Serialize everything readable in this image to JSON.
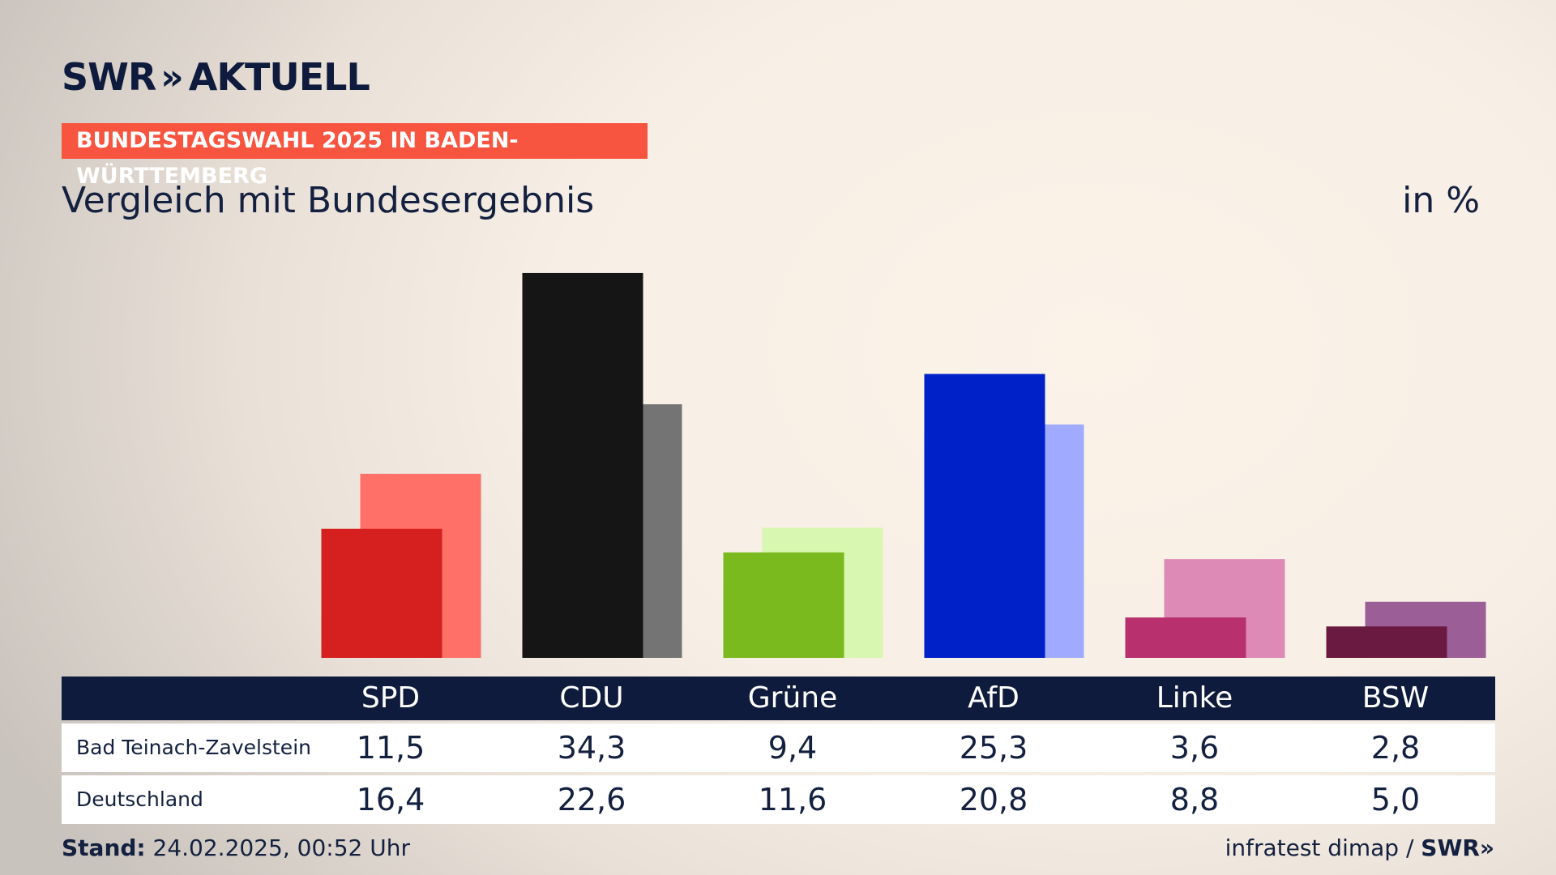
{
  "brand": {
    "name": "SWR",
    "chevrons": "»",
    "product": "AKTUELL"
  },
  "badge": "BUNDESTAGSWAHL 2025 IN BADEN-WÜRTTEMBERG",
  "subtitle": "Vergleich mit Bundesergebnis",
  "unit": "in %",
  "chart_data": {
    "type": "bar",
    "title": "Vergleich mit Bundesergebnis",
    "ylabel": "in %",
    "grid": false,
    "legend": "none",
    "ylim": [
      0,
      35
    ],
    "categories": [
      "SPD",
      "CDU",
      "Grüne",
      "AfD",
      "Linke",
      "BSW"
    ],
    "series": [
      {
        "name": "Bad Teinach-Zavelstein",
        "values": [
          11.5,
          34.3,
          9.4,
          25.3,
          3.6,
          2.8
        ],
        "colors": [
          "#d62020",
          "#151515",
          "#7aba1e",
          "#0020c8",
          "#b8306e",
          "#6a1a40"
        ]
      },
      {
        "name": "Deutschland",
        "values": [
          16.4,
          22.6,
          11.6,
          20.8,
          8.8,
          5.0
        ],
        "colors": [
          "#ff7068",
          "#747474",
          "#d8f7b0",
          "#a0aaff",
          "#de8ab6",
          "#9b5e96"
        ]
      }
    ],
    "table": {
      "rows": [
        {
          "label": "Bad Teinach-Zavelstein",
          "values": [
            "11,5",
            "34,3",
            "9,4",
            "25,3",
            "3,6",
            "2,8"
          ]
        },
        {
          "label": "Deutschland",
          "values": [
            "16,4",
            "22,6",
            "11,6",
            "20,8",
            "8,8",
            "5,0"
          ]
        }
      ]
    }
  },
  "footer": {
    "stand_label": "Stand:",
    "stand_value": " 24.02.2025, 00:52 Uhr",
    "source": "infratest dimap / ",
    "source_brand": "SWR»"
  }
}
